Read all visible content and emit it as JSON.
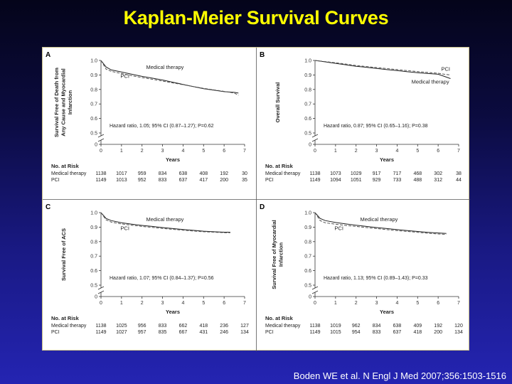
{
  "slide": {
    "title": "Kaplan-Meier Survival Curves",
    "citation": "Boden WE et al. N Engl J Med 2007;356:1503-1516"
  },
  "colors": {
    "title": "#ffff00",
    "medical_therapy_line": "#222222",
    "pci_line": "#555555",
    "figure_border": "#c9c08a"
  },
  "chart_data": [
    {
      "panel": "A",
      "type": "line",
      "ylabel": "Survival Free of Death from Any Cause and Myocardial Infarction",
      "xlabel": "Years",
      "xlim": [
        0,
        7
      ],
      "ylim": [
        0,
        1.0
      ],
      "y_axis_break": true,
      "yticks": [
        "0",
        "0.5",
        "0.6",
        "0.7",
        "0.8",
        "0.9",
        "1.0"
      ],
      "xticks": [
        "0",
        "1",
        "2",
        "3",
        "4",
        "5",
        "6",
        "7"
      ],
      "annotation": "Hazard ratio, 1.05; 95% CI (0.87–1.27); P=0.62",
      "series": [
        {
          "name": "Medical therapy",
          "x": [
            0,
            0.25,
            0.5,
            1,
            1.5,
            2,
            2.5,
            3,
            3.5,
            4,
            4.5,
            5,
            5.5,
            6,
            6.5,
            6.7
          ],
          "y": [
            1.0,
            0.955,
            0.935,
            0.92,
            0.905,
            0.89,
            0.878,
            0.865,
            0.85,
            0.835,
            0.82,
            0.805,
            0.795,
            0.785,
            0.78,
            0.775
          ]
        },
        {
          "name": "PCI",
          "x": [
            0,
            0.25,
            0.5,
            1,
            1.5,
            2,
            2.5,
            3,
            3.5,
            4,
            4.5,
            5,
            5.5,
            6,
            6.5,
            6.7
          ],
          "y": [
            1.0,
            0.94,
            0.925,
            0.91,
            0.895,
            0.882,
            0.87,
            0.858,
            0.845,
            0.833,
            0.82,
            0.808,
            0.797,
            0.787,
            0.775,
            0.76
          ]
        }
      ],
      "at_risk": {
        "title": "No. at Risk",
        "rows": [
          {
            "label": "Medical therapy",
            "values": [
              "1138",
              "1017",
              "959",
              "834",
              "638",
              "408",
              "192",
              "30"
            ]
          },
          {
            "label": "PCI",
            "values": [
              "1149",
              "1013",
              "952",
              "833",
              "637",
              "417",
              "200",
              "35"
            ]
          }
        ]
      }
    },
    {
      "panel": "B",
      "type": "line",
      "ylabel": "Overall Survival",
      "xlabel": "Years",
      "xlim": [
        0,
        7
      ],
      "ylim": [
        0,
        1.0
      ],
      "y_axis_break": true,
      "yticks": [
        "0",
        "0.5",
        "0.6",
        "0.7",
        "0.8",
        "0.9",
        "1.0"
      ],
      "xticks": [
        "0",
        "1",
        "2",
        "3",
        "4",
        "5",
        "6",
        "7"
      ],
      "annotation": "Hazard ratio, 0.87; 95% CI (0.65–1.16); P=0.38",
      "series": [
        {
          "name": "Medical therapy",
          "x": [
            0,
            0.5,
            1,
            1.5,
            2,
            2.5,
            3,
            3.5,
            4,
            4.5,
            5,
            5.5,
            6,
            6.3,
            6.6
          ],
          "y": [
            1.0,
            0.99,
            0.98,
            0.97,
            0.96,
            0.953,
            0.945,
            0.937,
            0.93,
            0.922,
            0.915,
            0.91,
            0.905,
            0.89,
            0.875
          ]
        },
        {
          "name": "PCI",
          "x": [
            0,
            0.5,
            1,
            1.5,
            2,
            2.5,
            3,
            3.5,
            4,
            4.5,
            5,
            5.5,
            6,
            6.3,
            6.6
          ],
          "y": [
            1.0,
            0.992,
            0.984,
            0.975,
            0.965,
            0.958,
            0.951,
            0.944,
            0.937,
            0.93,
            0.923,
            0.917,
            0.912,
            0.905,
            0.9
          ]
        }
      ],
      "at_risk": {
        "title": "No. at Risk",
        "rows": [
          {
            "label": "Medical therapy",
            "values": [
              "1138",
              "1073",
              "1029",
              "917",
              "717",
              "468",
              "302",
              "38"
            ]
          },
          {
            "label": "PCI",
            "values": [
              "1149",
              "1094",
              "1051",
              "929",
              "733",
              "488",
              "312",
              "44"
            ]
          }
        ]
      }
    },
    {
      "panel": "C",
      "type": "line",
      "ylabel": "Survival Free of ACS",
      "xlabel": "Years",
      "xlim": [
        0,
        7
      ],
      "ylim": [
        0,
        1.0
      ],
      "y_axis_break": true,
      "yticks": [
        "0",
        "0.5",
        "0.6",
        "0.7",
        "0.8",
        "0.9",
        "1.0"
      ],
      "xticks": [
        "0",
        "1",
        "2",
        "3",
        "4",
        "5",
        "6",
        "7"
      ],
      "annotation": "Hazard ratio, 1.07; 95% CI (0.84–1.37); P=0.56",
      "series": [
        {
          "name": "Medical therapy",
          "x": [
            0,
            0.25,
            0.5,
            1,
            1.5,
            2,
            2.5,
            3,
            3.5,
            4,
            4.5,
            5,
            5.5,
            6,
            6.3
          ],
          "y": [
            1.0,
            0.96,
            0.945,
            0.93,
            0.92,
            0.912,
            0.905,
            0.897,
            0.89,
            0.884,
            0.878,
            0.872,
            0.868,
            0.865,
            0.865
          ]
        },
        {
          "name": "PCI",
          "x": [
            0,
            0.25,
            0.5,
            1,
            1.5,
            2,
            2.5,
            3,
            3.5,
            4,
            4.5,
            5,
            5.5,
            6,
            6.3
          ],
          "y": [
            1.0,
            0.95,
            0.935,
            0.922,
            0.913,
            0.905,
            0.898,
            0.891,
            0.885,
            0.879,
            0.873,
            0.868,
            0.865,
            0.862,
            0.862
          ]
        }
      ],
      "at_risk": {
        "title": "No. at Risk",
        "rows": [
          {
            "label": "Medical therapy",
            "values": [
              "1138",
              "1025",
              "956",
              "833",
              "662",
              "418",
              "236",
              "127"
            ]
          },
          {
            "label": "PCI",
            "values": [
              "1149",
              "1027",
              "957",
              "835",
              "667",
              "431",
              "246",
              "134"
            ]
          }
        ]
      }
    },
    {
      "panel": "D",
      "type": "line",
      "ylabel": "Survival Free of Myocardial Infarction",
      "xlabel": "Years",
      "xlim": [
        0,
        7
      ],
      "ylim": [
        0,
        1.0
      ],
      "y_axis_break": true,
      "yticks": [
        "0",
        "0.5",
        "0.6",
        "0.7",
        "0.8",
        "0.9",
        "1.0"
      ],
      "xticks": [
        "0",
        "1",
        "2",
        "3",
        "4",
        "5",
        "6",
        "7"
      ],
      "annotation": "Hazard ratio, 1.13; 95% CI (0.89–1.43); P=0.33",
      "series": [
        {
          "name": "Medical therapy",
          "x": [
            0,
            0.25,
            0.5,
            1,
            1.5,
            2,
            2.5,
            3,
            3.5,
            4,
            4.5,
            5,
            5.5,
            6,
            6.4
          ],
          "y": [
            1.0,
            0.96,
            0.945,
            0.932,
            0.922,
            0.913,
            0.905,
            0.897,
            0.89,
            0.883,
            0.876,
            0.87,
            0.864,
            0.86,
            0.857
          ]
        },
        {
          "name": "PCI",
          "x": [
            0,
            0.25,
            0.5,
            1,
            1.5,
            2,
            2.5,
            3,
            3.5,
            4,
            4.5,
            5,
            5.5,
            6,
            6.4
          ],
          "y": [
            1.0,
            0.945,
            0.93,
            0.92,
            0.912,
            0.905,
            0.897,
            0.89,
            0.883,
            0.876,
            0.87,
            0.864,
            0.858,
            0.853,
            0.85
          ]
        }
      ],
      "at_risk": {
        "title": "No. at Risk",
        "rows": [
          {
            "label": "Medical therapy",
            "values": [
              "1138",
              "1019",
              "962",
              "834",
              "638",
              "409",
              "192",
              "120"
            ]
          },
          {
            "label": "PCI",
            "values": [
              "1149",
              "1015",
              "954",
              "833",
              "637",
              "418",
              "200",
              "134"
            ]
          }
        ]
      }
    }
  ]
}
